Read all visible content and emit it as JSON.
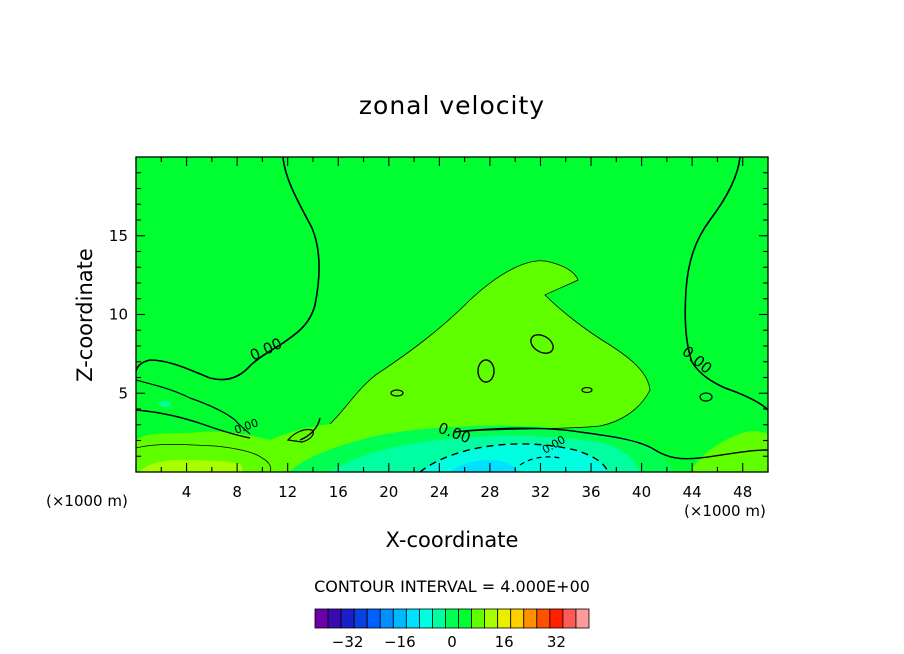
{
  "chart_data": {
    "type": "heatmap",
    "title": "zonal velocity",
    "xlabel": "X-coordinate",
    "ylabel": "Z-coordinate",
    "x_unit": "(×1000 m)",
    "x_unit_right": "(×1000 m)",
    "xlim": [
      0,
      50
    ],
    "ylim": [
      0,
      20
    ],
    "x_ticks": [
      4,
      8,
      12,
      16,
      20,
      24,
      28,
      32,
      36,
      40,
      44,
      48
    ],
    "y_ticks": [
      5,
      10,
      15
    ],
    "contour_interval_label": "CONTOUR INTERVAL = 4.000E+00",
    "contour_labels": [
      "0.00",
      "0.00",
      "0.00",
      "0.00",
      "0.00"
    ],
    "colorbar": {
      "ticks": [
        -32,
        -16,
        0,
        16,
        32
      ],
      "tick_labels": [
        "−32",
        "−16",
        "0",
        "16",
        "32"
      ],
      "levels": [
        -40,
        -36,
        -32,
        -28,
        -24,
        -20,
        -16,
        -12,
        -8,
        -4,
        0,
        4,
        8,
        12,
        16,
        20,
        24,
        28,
        32,
        36,
        40
      ],
      "colors": [
        "#6a00a8",
        "#3a0ab0",
        "#1a20c8",
        "#0a40e0",
        "#0060ff",
        "#0090ff",
        "#00b8ff",
        "#00e0ff",
        "#00ffe0",
        "#00ffa0",
        "#00ff50",
        "#00ff30",
        "#60ff00",
        "#a8ff00",
        "#e8f000",
        "#ffd000",
        "#ff9000",
        "#ff5000",
        "#ff2000",
        "#ff5a5a",
        "#ff9a9a"
      ]
    },
    "fill_colors": {
      "background": "#00ff30",
      "positive_4_8": "#60ff00",
      "positive_8_12": "#a8ff00",
      "negative_0_4": "#00ff50",
      "negative_4_8": "#00ffa0",
      "negative_8_12": "#00ffe0",
      "negative_12_16": "#00e0ff"
    }
  }
}
